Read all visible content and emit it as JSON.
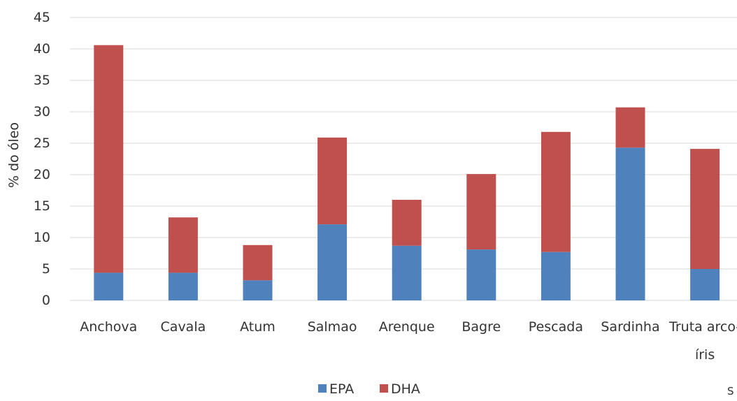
{
  "chart_data": {
    "type": "stacked_bar",
    "y_label": "% do óleo",
    "categories": [
      "Anchova",
      "Cavala",
      "Atum",
      "Salmao",
      "Arenque",
      "Bagre",
      "Pescada",
      "Sardinha",
      "Truta arco-íris"
    ],
    "series": [
      {
        "name": "EPA",
        "color": "#4f81bd",
        "values": [
          4.4,
          4.4,
          3.2,
          12.1,
          8.7,
          8.1,
          7.7,
          24.3,
          5.0
        ]
      },
      {
        "name": "DHA",
        "color": "#c0504d",
        "values": [
          36.2,
          8.8,
          5.6,
          13.8,
          7.3,
          12.0,
          19.1,
          6.4,
          19.1
        ]
      }
    ],
    "ylim": [
      0,
      45
    ],
    "yticks": [
      0,
      5,
      10,
      15,
      20,
      25,
      30,
      35,
      40,
      45
    ],
    "grid": true,
    "legend": "bottom",
    "note": "S"
  }
}
